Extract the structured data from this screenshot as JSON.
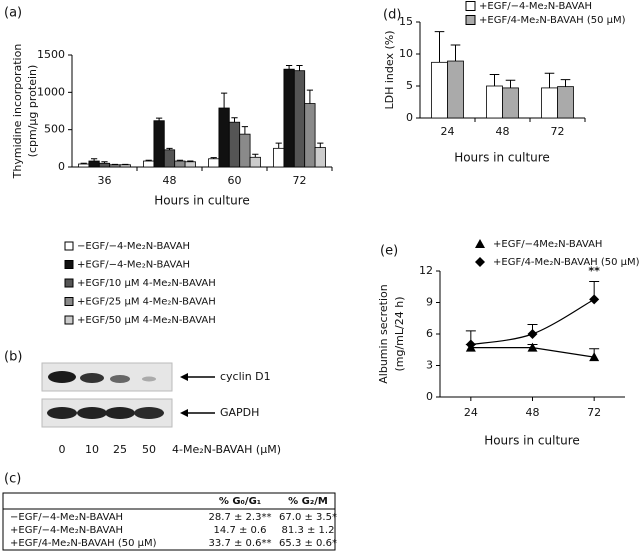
{
  "chart_data": [
    {
      "type": "bar",
      "label": "(a)",
      "y_label": [
        "Thymidine incorporation",
        "(cpm/μg protein)"
      ],
      "x_label": "Hours in culture",
      "categories": [
        "36",
        "48",
        "60",
        "72"
      ],
      "ylim": [
        0,
        1500
      ],
      "yticks": [
        0,
        500,
        1000,
        1500
      ],
      "series": [
        {
          "name": "−EGF/−4-Me₂N-BAVAH",
          "color": "#ffffff",
          "values": [
            40,
            80,
            110,
            250
          ],
          "errors": [
            10,
            10,
            15,
            70
          ]
        },
        {
          "name": "+EGF/−4-Me₂N-BAVAH",
          "color": "#111111",
          "values": [
            80,
            620,
            790,
            1310
          ],
          "errors": [
            30,
            35,
            200,
            50
          ]
        },
        {
          "name": "+EGF/10 μM 4-Me₂N-BAVAH",
          "color": "#555555",
          "values": [
            50,
            230,
            600,
            1290
          ],
          "errors": [
            20,
            20,
            60,
            70
          ]
        },
        {
          "name": "+EGF/25 μM 4-Me₂N-BAVAH",
          "color": "#8a8a8a",
          "values": [
            30,
            80,
            440,
            850
          ],
          "errors": [
            5,
            10,
            100,
            180
          ]
        },
        {
          "name": "+EGF/50 μM 4-Me₂N-BAVAH",
          "color": "#cccccc",
          "values": [
            30,
            70,
            130,
            260
          ],
          "errors": [
            5,
            10,
            40,
            60
          ]
        }
      ]
    },
    {
      "type": "bar",
      "label": "(d)",
      "y_label": [
        "LDH index (%)"
      ],
      "x_label": "Hours in culture",
      "categories": [
        "24",
        "48",
        "72"
      ],
      "ylim": [
        0,
        15
      ],
      "yticks": [
        0,
        5,
        10,
        15
      ],
      "series": [
        {
          "name": "+EGF/−4-Me₂N-BAVAH",
          "color": "#ffffff",
          "values": [
            8.7,
            5.0,
            4.7
          ],
          "errors": [
            4.8,
            1.8,
            2.3
          ]
        },
        {
          "name": "+EGF/4-Me₂N-BAVAH (50 μM)",
          "color": "#aaaaaa",
          "values": [
            8.9,
            4.7,
            4.9
          ],
          "errors": [
            2.5,
            1.2,
            1.1
          ]
        }
      ]
    },
    {
      "type": "line",
      "label": "(e)",
      "y_label": [
        "Albumin secretion",
        "(mg/mL/24 h)"
      ],
      "x_label": "Hours in culture",
      "categories": [
        "24",
        "48",
        "72"
      ],
      "ylim": [
        0,
        12
      ],
      "yticks": [
        0,
        3,
        6,
        9,
        12
      ],
      "annotation": "**",
      "series": [
        {
          "name": "+EGF/−4Me₂N-BAVAH",
          "color": "#000000",
          "marker": "triangle",
          "values": [
            4.7,
            4.7,
            3.8
          ],
          "errors": [
            0.3,
            0.3,
            0.8
          ]
        },
        {
          "name": "+EGF/4-Me₂N-BAVAH (50 μM)",
          "color": "#000000",
          "marker": "diamond",
          "values": [
            5.0,
            6.0,
            9.3
          ],
          "errors": [
            1.3,
            0.9,
            1.7
          ]
        }
      ]
    }
  ],
  "blot": {
    "label": "(b)",
    "bands": [
      "cyclin D1",
      "GAPDH"
    ],
    "lanes": [
      "0",
      "10",
      "25",
      "50"
    ],
    "lane_title": "4-Me₂N-BAVAH (μM)"
  },
  "table": {
    "label": "(c)",
    "header": [
      "% G₀/G₁",
      "% G₂/M"
    ],
    "rows": [
      [
        "−EGF/−4-Me₂N-BAVAH",
        "28.7 ± 2.3**",
        "67.0 ± 3.5*"
      ],
      [
        "+EGF/−4-Me₂N-BAVAH",
        "14.7 ± 0.6",
        "81.3 ± 1.2"
      ],
      [
        "+EGF/4-Me₂N-BAVAH (50 μM)",
        "33.7 ± 0.6**",
        "65.3 ± 0.6*"
      ]
    ]
  }
}
